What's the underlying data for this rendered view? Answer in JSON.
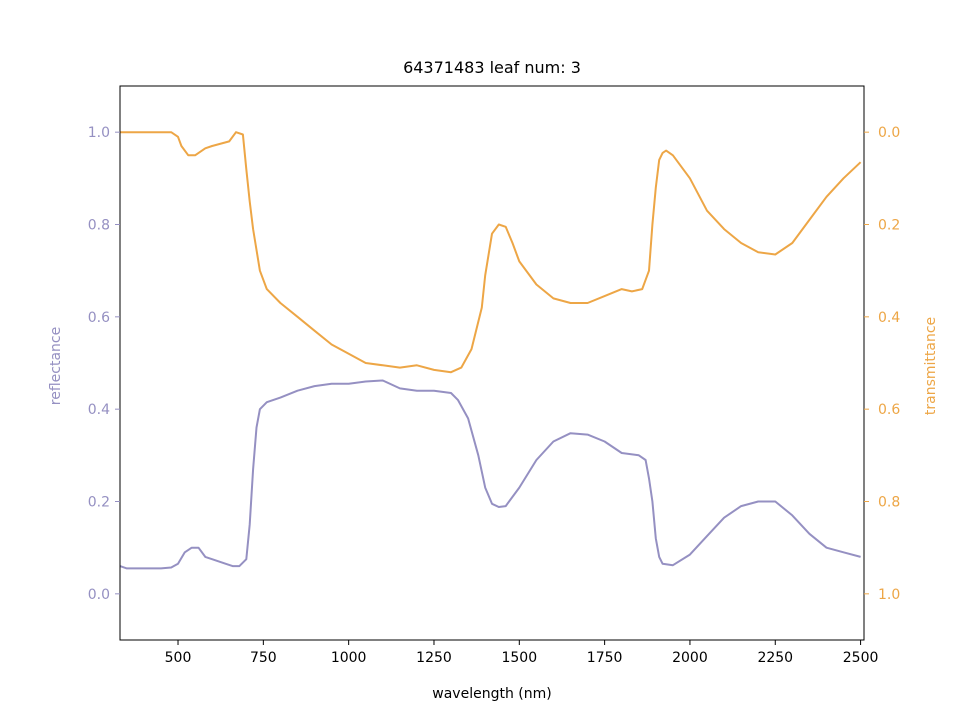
{
  "chart_data": {
    "type": "line",
    "title": "64371483 leaf num: 3",
    "xlabel": "wavelength (nm)",
    "ylabel_left": "reflectance",
    "ylabel_right": "transmittance",
    "xlim": [
      330,
      2510
    ],
    "ylim_left": [
      -0.1,
      1.1
    ],
    "ylim_right": [
      1.1,
      -0.1
    ],
    "right_axis_inverted": true,
    "grid": false,
    "xticks": [
      500,
      750,
      1000,
      1250,
      1500,
      1750,
      2000,
      2250,
      2500
    ],
    "yticks_left": [
      0.0,
      0.2,
      0.4,
      0.6,
      0.8,
      1.0
    ],
    "yticks_right": [
      0.0,
      0.2,
      0.4,
      0.6,
      0.8,
      1.0
    ],
    "colors": {
      "reflectance": "#9590c2",
      "transmittance": "#eda646"
    },
    "series": [
      {
        "name": "reflectance",
        "axis": "left",
        "x": [
          330,
          350,
          400,
          450,
          480,
          500,
          520,
          540,
          560,
          580,
          600,
          640,
          660,
          680,
          700,
          710,
          720,
          730,
          740,
          760,
          800,
          850,
          900,
          950,
          1000,
          1050,
          1100,
          1150,
          1200,
          1250,
          1300,
          1320,
          1350,
          1380,
          1400,
          1420,
          1440,
          1460,
          1500,
          1550,
          1600,
          1650,
          1700,
          1750,
          1800,
          1850,
          1870,
          1880,
          1890,
          1900,
          1910,
          1920,
          1950,
          2000,
          2050,
          2100,
          2150,
          2200,
          2250,
          2300,
          2350,
          2400,
          2450,
          2500
        ],
        "y": [
          0.06,
          0.055,
          0.055,
          0.055,
          0.057,
          0.065,
          0.09,
          0.1,
          0.1,
          0.08,
          0.075,
          0.065,
          0.06,
          0.06,
          0.075,
          0.15,
          0.27,
          0.36,
          0.4,
          0.415,
          0.425,
          0.44,
          0.45,
          0.455,
          0.455,
          0.46,
          0.462,
          0.445,
          0.44,
          0.44,
          0.435,
          0.42,
          0.38,
          0.3,
          0.23,
          0.195,
          0.188,
          0.19,
          0.23,
          0.29,
          0.33,
          0.348,
          0.345,
          0.33,
          0.305,
          0.3,
          0.29,
          0.25,
          0.2,
          0.12,
          0.08,
          0.065,
          0.062,
          0.085,
          0.125,
          0.165,
          0.19,
          0.2,
          0.2,
          0.17,
          0.13,
          0.1,
          0.09,
          0.08
        ]
      },
      {
        "name": "transmittance",
        "axis": "right",
        "x": [
          330,
          350,
          400,
          450,
          480,
          500,
          510,
          530,
          550,
          580,
          600,
          650,
          670,
          690,
          700,
          710,
          720,
          740,
          760,
          800,
          850,
          900,
          950,
          1000,
          1050,
          1100,
          1150,
          1200,
          1250,
          1300,
          1330,
          1360,
          1390,
          1400,
          1420,
          1440,
          1460,
          1480,
          1500,
          1550,
          1600,
          1650,
          1700,
          1750,
          1800,
          1830,
          1860,
          1880,
          1890,
          1900,
          1910,
          1920,
          1930,
          1950,
          2000,
          2050,
          2100,
          2150,
          2200,
          2250,
          2300,
          2350,
          2400,
          2450,
          2500
        ],
        "y": [
          0.0,
          0.0,
          0.0,
          0.0,
          0.0,
          0.01,
          0.03,
          0.05,
          0.05,
          0.035,
          0.03,
          0.02,
          0.0,
          0.005,
          0.08,
          0.15,
          0.21,
          0.3,
          0.34,
          0.37,
          0.4,
          0.43,
          0.46,
          0.48,
          0.5,
          0.505,
          0.51,
          0.505,
          0.515,
          0.52,
          0.51,
          0.47,
          0.38,
          0.31,
          0.22,
          0.2,
          0.205,
          0.24,
          0.28,
          0.33,
          0.36,
          0.37,
          0.37,
          0.355,
          0.34,
          0.345,
          0.34,
          0.3,
          0.2,
          0.12,
          0.06,
          0.045,
          0.04,
          0.05,
          0.1,
          0.17,
          0.21,
          0.24,
          0.26,
          0.265,
          0.24,
          0.19,
          0.14,
          0.1,
          0.065
        ]
      }
    ]
  }
}
